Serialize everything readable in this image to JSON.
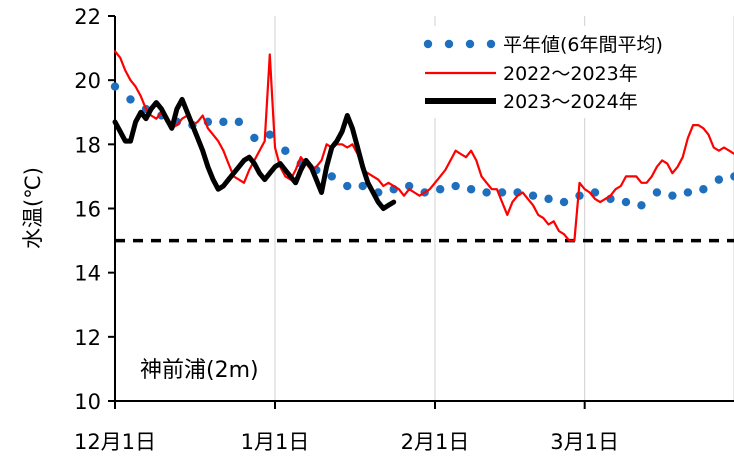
{
  "chart_data": {
    "type": "line",
    "station_label": "神前浦(2m)",
    "ylabel": "水温(℃)",
    "xlabel": "",
    "ylim": [
      10,
      22
    ],
    "yticks": [
      10,
      12,
      14,
      16,
      18,
      20,
      22
    ],
    "x_ticks": [
      {
        "label": "12月1日",
        "day": 0
      },
      {
        "label": "1月1日",
        "day": 31
      },
      {
        "label": "2月1日",
        "day": 62
      },
      {
        "label": "3月1日",
        "day": 91
      }
    ],
    "x_range_days": [
      0,
      121
    ],
    "grid": "vertical",
    "legend_position": "top-right",
    "reference_line": {
      "value": 15,
      "style": "dashed",
      "color": "#000000"
    },
    "series": [
      {
        "name": "平年値(6年間平均)",
        "style": "dotted",
        "color": "#1f6fbf",
        "points": [
          [
            0,
            19.8
          ],
          [
            3,
            19.4
          ],
          [
            6,
            19.1
          ],
          [
            9,
            18.9
          ],
          [
            12,
            18.7
          ],
          [
            15,
            18.6
          ],
          [
            18,
            18.7
          ],
          [
            21,
            18.7
          ],
          [
            24,
            18.7
          ],
          [
            27,
            18.2
          ],
          [
            30,
            18.3
          ],
          [
            33,
            17.8
          ],
          [
            36,
            17.4
          ],
          [
            39,
            17.2
          ],
          [
            42,
            17.0
          ],
          [
            45,
            16.7
          ],
          [
            48,
            16.7
          ],
          [
            51,
            16.5
          ],
          [
            54,
            16.6
          ],
          [
            57,
            16.7
          ],
          [
            60,
            16.5
          ],
          [
            63,
            16.6
          ],
          [
            66,
            16.7
          ],
          [
            69,
            16.6
          ],
          [
            72,
            16.5
          ],
          [
            75,
            16.5
          ],
          [
            78,
            16.5
          ],
          [
            81,
            16.4
          ],
          [
            84,
            16.3
          ],
          [
            87,
            16.2
          ],
          [
            90,
            16.4
          ],
          [
            93,
            16.5
          ],
          [
            96,
            16.3
          ],
          [
            99,
            16.2
          ],
          [
            102,
            16.1
          ],
          [
            105,
            16.5
          ],
          [
            108,
            16.4
          ],
          [
            111,
            16.5
          ],
          [
            114,
            16.6
          ],
          [
            117,
            16.9
          ],
          [
            120,
            17.0
          ]
        ]
      },
      {
        "name": "2022〜2023年",
        "style": "solid",
        "color": "#ff0000",
        "points": [
          [
            0,
            20.9
          ],
          [
            1,
            20.7
          ],
          [
            2,
            20.3
          ],
          [
            3,
            20.0
          ],
          [
            4,
            19.8
          ],
          [
            5,
            19.5
          ],
          [
            6,
            19.1
          ],
          [
            7,
            18.9
          ],
          [
            8,
            18.8
          ],
          [
            9,
            19.0
          ],
          [
            10,
            18.7
          ],
          [
            11,
            18.5
          ],
          [
            12,
            18.6
          ],
          [
            13,
            18.8
          ],
          [
            14,
            18.9
          ],
          [
            15,
            18.6
          ],
          [
            16,
            18.7
          ],
          [
            17,
            18.9
          ],
          [
            18,
            18.5
          ],
          [
            19,
            18.3
          ],
          [
            20,
            18.1
          ],
          [
            21,
            17.8
          ],
          [
            22,
            17.4
          ],
          [
            23,
            17.0
          ],
          [
            24,
            16.9
          ],
          [
            25,
            16.8
          ],
          [
            26,
            17.2
          ],
          [
            27,
            17.5
          ],
          [
            28,
            17.8
          ],
          [
            29,
            18.1
          ],
          [
            30,
            20.8
          ],
          [
            31,
            17.9
          ],
          [
            32,
            17.3
          ],
          [
            33,
            17.0
          ],
          [
            34,
            16.9
          ],
          [
            35,
            17.2
          ],
          [
            36,
            17.6
          ],
          [
            37,
            17.4
          ],
          [
            38,
            17.2
          ],
          [
            39,
            17.3
          ],
          [
            40,
            17.5
          ],
          [
            41,
            18.0
          ],
          [
            42,
            17.9
          ],
          [
            43,
            18.0
          ],
          [
            44,
            18.0
          ],
          [
            45,
            17.9
          ],
          [
            46,
            18.0
          ],
          [
            47,
            17.7
          ],
          [
            48,
            17.2
          ],
          [
            49,
            17.1
          ],
          [
            50,
            17.0
          ],
          [
            51,
            16.9
          ],
          [
            52,
            16.7
          ],
          [
            53,
            16.8
          ],
          [
            54,
            16.7
          ],
          [
            55,
            16.6
          ],
          [
            56,
            16.4
          ],
          [
            57,
            16.6
          ],
          [
            58,
            16.5
          ],
          [
            59,
            16.4
          ],
          [
            60,
            16.5
          ],
          [
            61,
            16.6
          ],
          [
            62,
            16.8
          ],
          [
            63,
            17.0
          ],
          [
            64,
            17.2
          ],
          [
            65,
            17.5
          ],
          [
            66,
            17.8
          ],
          [
            67,
            17.7
          ],
          [
            68,
            17.6
          ],
          [
            69,
            17.8
          ],
          [
            70,
            17.5
          ],
          [
            71,
            17.0
          ],
          [
            72,
            16.8
          ],
          [
            73,
            16.6
          ],
          [
            74,
            16.6
          ],
          [
            75,
            16.2
          ],
          [
            76,
            15.8
          ],
          [
            77,
            16.2
          ],
          [
            78,
            16.4
          ],
          [
            79,
            16.5
          ],
          [
            80,
            16.3
          ],
          [
            81,
            16.1
          ],
          [
            82,
            15.8
          ],
          [
            83,
            15.7
          ],
          [
            84,
            15.5
          ],
          [
            85,
            15.6
          ],
          [
            86,
            15.3
          ],
          [
            87,
            15.2
          ],
          [
            88,
            15.0
          ],
          [
            89,
            15.0
          ],
          [
            90,
            16.8
          ],
          [
            91,
            16.6
          ],
          [
            92,
            16.5
          ],
          [
            93,
            16.3
          ],
          [
            94,
            16.2
          ],
          [
            95,
            16.3
          ],
          [
            96,
            16.4
          ],
          [
            97,
            16.6
          ],
          [
            98,
            16.7
          ],
          [
            99,
            17.0
          ],
          [
            100,
            17.0
          ],
          [
            101,
            17.0
          ],
          [
            102,
            16.8
          ],
          [
            103,
            16.8
          ],
          [
            104,
            17.0
          ],
          [
            105,
            17.3
          ],
          [
            106,
            17.5
          ],
          [
            107,
            17.4
          ],
          [
            108,
            17.1
          ],
          [
            109,
            17.3
          ],
          [
            110,
            17.6
          ],
          [
            111,
            18.2
          ],
          [
            112,
            18.6
          ],
          [
            113,
            18.6
          ],
          [
            114,
            18.5
          ],
          [
            115,
            18.3
          ],
          [
            116,
            17.9
          ],
          [
            117,
            17.8
          ],
          [
            118,
            17.9
          ],
          [
            119,
            17.8
          ],
          [
            120,
            17.7
          ]
        ]
      },
      {
        "name": "2023〜2024年",
        "style": "solid",
        "color": "#000000",
        "points": [
          [
            0,
            18.7
          ],
          [
            1,
            18.4
          ],
          [
            2,
            18.1
          ],
          [
            3,
            18.1
          ],
          [
            4,
            18.7
          ],
          [
            5,
            19.0
          ],
          [
            6,
            18.8
          ],
          [
            7,
            19.1
          ],
          [
            8,
            19.3
          ],
          [
            9,
            19.1
          ],
          [
            10,
            18.8
          ],
          [
            11,
            18.5
          ],
          [
            12,
            19.1
          ],
          [
            13,
            19.4
          ],
          [
            14,
            19.0
          ],
          [
            15,
            18.6
          ],
          [
            16,
            18.2
          ],
          [
            17,
            17.8
          ],
          [
            18,
            17.3
          ],
          [
            19,
            16.9
          ],
          [
            20,
            16.6
          ],
          [
            21,
            16.7
          ],
          [
            22,
            16.9
          ],
          [
            23,
            17.1
          ],
          [
            24,
            17.3
          ],
          [
            25,
            17.5
          ],
          [
            26,
            17.6
          ],
          [
            27,
            17.4
          ],
          [
            28,
            17.1
          ],
          [
            29,
            16.9
          ],
          [
            30,
            17.1
          ],
          [
            31,
            17.3
          ],
          [
            32,
            17.4
          ],
          [
            33,
            17.2
          ],
          [
            34,
            17.0
          ],
          [
            35,
            16.8
          ],
          [
            36,
            17.2
          ],
          [
            37,
            17.5
          ],
          [
            38,
            17.3
          ],
          [
            39,
            16.9
          ],
          [
            40,
            16.5
          ],
          [
            41,
            17.3
          ],
          [
            42,
            17.9
          ],
          [
            43,
            18.1
          ],
          [
            44,
            18.4
          ],
          [
            45,
            18.9
          ],
          [
            46,
            18.5
          ],
          [
            47,
            17.9
          ],
          [
            48,
            17.3
          ],
          [
            49,
            16.8
          ],
          [
            50,
            16.5
          ],
          [
            51,
            16.2
          ],
          [
            52,
            16.0
          ],
          [
            53,
            16.1
          ],
          [
            54,
            16.2
          ]
        ]
      }
    ]
  }
}
